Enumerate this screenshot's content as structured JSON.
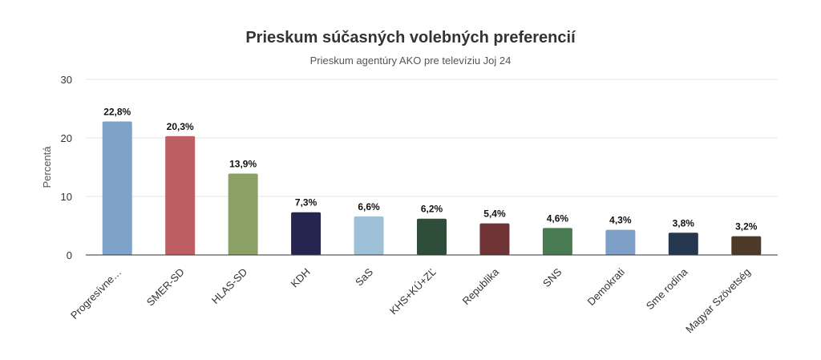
{
  "chart_data": {
    "type": "bar",
    "title": "Prieskum súčasných volebných preferencií",
    "subtitle": "Prieskum agentúry AKO pre televíziu Joj 24",
    "xlabel": "",
    "ylabel": "Percentá",
    "ylim": [
      0,
      30
    ],
    "yticks": [
      0,
      10,
      20,
      30
    ],
    "grid": true,
    "legend": "none",
    "categories": [
      "Progresívne…",
      "SMER-SD",
      "HLAS-SD",
      "KDH",
      "SaS",
      "KHS+KÚ+ZĽ",
      "Republika",
      "SNS",
      "Demokrati",
      "Sme rodina",
      "Magyar Szövetség"
    ],
    "values": [
      22.8,
      20.3,
      13.9,
      7.3,
      6.6,
      6.2,
      5.4,
      4.6,
      4.3,
      3.8,
      3.2
    ],
    "value_labels": [
      "22,8%",
      "20,3%",
      "13,9%",
      "7,3%",
      "6,6%",
      "6,2%",
      "5,4%",
      "4,6%",
      "4,3%",
      "3,8%",
      "3,2%"
    ],
    "colors": [
      "#7fa2c9",
      "#bd5e63",
      "#8aa065",
      "#252550",
      "#9fc1d8",
      "#2e4e3a",
      "#6f3336",
      "#4a7a52",
      "#7ea0c8",
      "#263750",
      "#4e3a29"
    ]
  }
}
